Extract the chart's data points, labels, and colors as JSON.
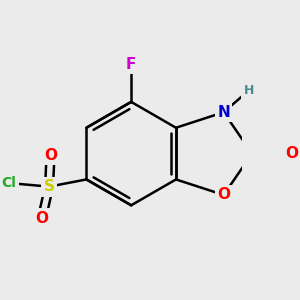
{
  "bg_color": "#ebebeb",
  "bond_color": "#000000",
  "bond_width": 1.8,
  "atom_colors": {
    "F": "#cc00cc",
    "N": "#0000cc",
    "H": "#4a8a8a",
    "O": "#ff0000",
    "S": "#cccc00",
    "Cl": "#22aa22",
    "C": "#000000"
  },
  "font_size": 10,
  "fig_size": [
    3.0,
    3.0
  ],
  "dpi": 100
}
